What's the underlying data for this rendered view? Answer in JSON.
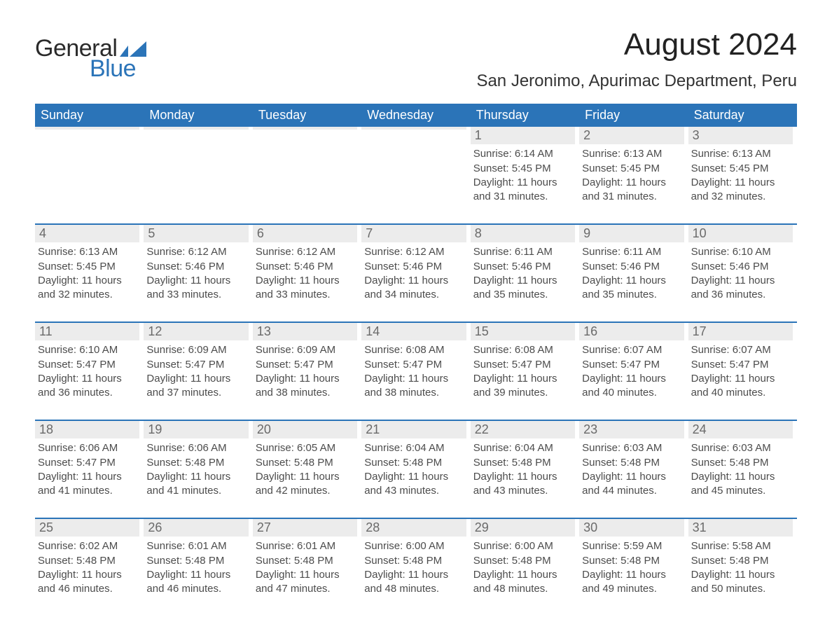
{
  "brand": {
    "word1": "General",
    "word2": "Blue"
  },
  "title": "August 2024",
  "subtitle": "San Jeronimo, Apurimac Department, Peru",
  "colors": {
    "accent": "#2b74b8",
    "header_text": "#ffffff",
    "daynum_bg": "#ececec",
    "daynum_fg": "#6a6a6a",
    "body_text": "#4c4c4c",
    "background": "#ffffff"
  },
  "dow": [
    "Sunday",
    "Monday",
    "Tuesday",
    "Wednesday",
    "Thursday",
    "Friday",
    "Saturday"
  ],
  "labels": {
    "sunrise": "Sunrise:",
    "sunset": "Sunset:",
    "daylight": "Daylight:"
  },
  "weeks": [
    [
      {
        "blank": true
      },
      {
        "blank": true
      },
      {
        "blank": true
      },
      {
        "blank": true
      },
      {
        "n": "1",
        "sunrise": "6:14 AM",
        "sunset": "5:45 PM",
        "daylight": "11 hours and 31 minutes."
      },
      {
        "n": "2",
        "sunrise": "6:13 AM",
        "sunset": "5:45 PM",
        "daylight": "11 hours and 31 minutes."
      },
      {
        "n": "3",
        "sunrise": "6:13 AM",
        "sunset": "5:45 PM",
        "daylight": "11 hours and 32 minutes."
      }
    ],
    [
      {
        "n": "4",
        "sunrise": "6:13 AM",
        "sunset": "5:45 PM",
        "daylight": "11 hours and 32 minutes."
      },
      {
        "n": "5",
        "sunrise": "6:12 AM",
        "sunset": "5:46 PM",
        "daylight": "11 hours and 33 minutes."
      },
      {
        "n": "6",
        "sunrise": "6:12 AM",
        "sunset": "5:46 PM",
        "daylight": "11 hours and 33 minutes."
      },
      {
        "n": "7",
        "sunrise": "6:12 AM",
        "sunset": "5:46 PM",
        "daylight": "11 hours and 34 minutes."
      },
      {
        "n": "8",
        "sunrise": "6:11 AM",
        "sunset": "5:46 PM",
        "daylight": "11 hours and 35 minutes."
      },
      {
        "n": "9",
        "sunrise": "6:11 AM",
        "sunset": "5:46 PM",
        "daylight": "11 hours and 35 minutes."
      },
      {
        "n": "10",
        "sunrise": "6:10 AM",
        "sunset": "5:46 PM",
        "daylight": "11 hours and 36 minutes."
      }
    ],
    [
      {
        "n": "11",
        "sunrise": "6:10 AM",
        "sunset": "5:47 PM",
        "daylight": "11 hours and 36 minutes."
      },
      {
        "n": "12",
        "sunrise": "6:09 AM",
        "sunset": "5:47 PM",
        "daylight": "11 hours and 37 minutes."
      },
      {
        "n": "13",
        "sunrise": "6:09 AM",
        "sunset": "5:47 PM",
        "daylight": "11 hours and 38 minutes."
      },
      {
        "n": "14",
        "sunrise": "6:08 AM",
        "sunset": "5:47 PM",
        "daylight": "11 hours and 38 minutes."
      },
      {
        "n": "15",
        "sunrise": "6:08 AM",
        "sunset": "5:47 PM",
        "daylight": "11 hours and 39 minutes."
      },
      {
        "n": "16",
        "sunrise": "6:07 AM",
        "sunset": "5:47 PM",
        "daylight": "11 hours and 40 minutes."
      },
      {
        "n": "17",
        "sunrise": "6:07 AM",
        "sunset": "5:47 PM",
        "daylight": "11 hours and 40 minutes."
      }
    ],
    [
      {
        "n": "18",
        "sunrise": "6:06 AM",
        "sunset": "5:47 PM",
        "daylight": "11 hours and 41 minutes."
      },
      {
        "n": "19",
        "sunrise": "6:06 AM",
        "sunset": "5:48 PM",
        "daylight": "11 hours and 41 minutes."
      },
      {
        "n": "20",
        "sunrise": "6:05 AM",
        "sunset": "5:48 PM",
        "daylight": "11 hours and 42 minutes."
      },
      {
        "n": "21",
        "sunrise": "6:04 AM",
        "sunset": "5:48 PM",
        "daylight": "11 hours and 43 minutes."
      },
      {
        "n": "22",
        "sunrise": "6:04 AM",
        "sunset": "5:48 PM",
        "daylight": "11 hours and 43 minutes."
      },
      {
        "n": "23",
        "sunrise": "6:03 AM",
        "sunset": "5:48 PM",
        "daylight": "11 hours and 44 minutes."
      },
      {
        "n": "24",
        "sunrise": "6:03 AM",
        "sunset": "5:48 PM",
        "daylight": "11 hours and 45 minutes."
      }
    ],
    [
      {
        "n": "25",
        "sunrise": "6:02 AM",
        "sunset": "5:48 PM",
        "daylight": "11 hours and 46 minutes."
      },
      {
        "n": "26",
        "sunrise": "6:01 AM",
        "sunset": "5:48 PM",
        "daylight": "11 hours and 46 minutes."
      },
      {
        "n": "27",
        "sunrise": "6:01 AM",
        "sunset": "5:48 PM",
        "daylight": "11 hours and 47 minutes."
      },
      {
        "n": "28",
        "sunrise": "6:00 AM",
        "sunset": "5:48 PM",
        "daylight": "11 hours and 48 minutes."
      },
      {
        "n": "29",
        "sunrise": "6:00 AM",
        "sunset": "5:48 PM",
        "daylight": "11 hours and 48 minutes."
      },
      {
        "n": "30",
        "sunrise": "5:59 AM",
        "sunset": "5:48 PM",
        "daylight": "11 hours and 49 minutes."
      },
      {
        "n": "31",
        "sunrise": "5:58 AM",
        "sunset": "5:48 PM",
        "daylight": "11 hours and 50 minutes."
      }
    ]
  ]
}
